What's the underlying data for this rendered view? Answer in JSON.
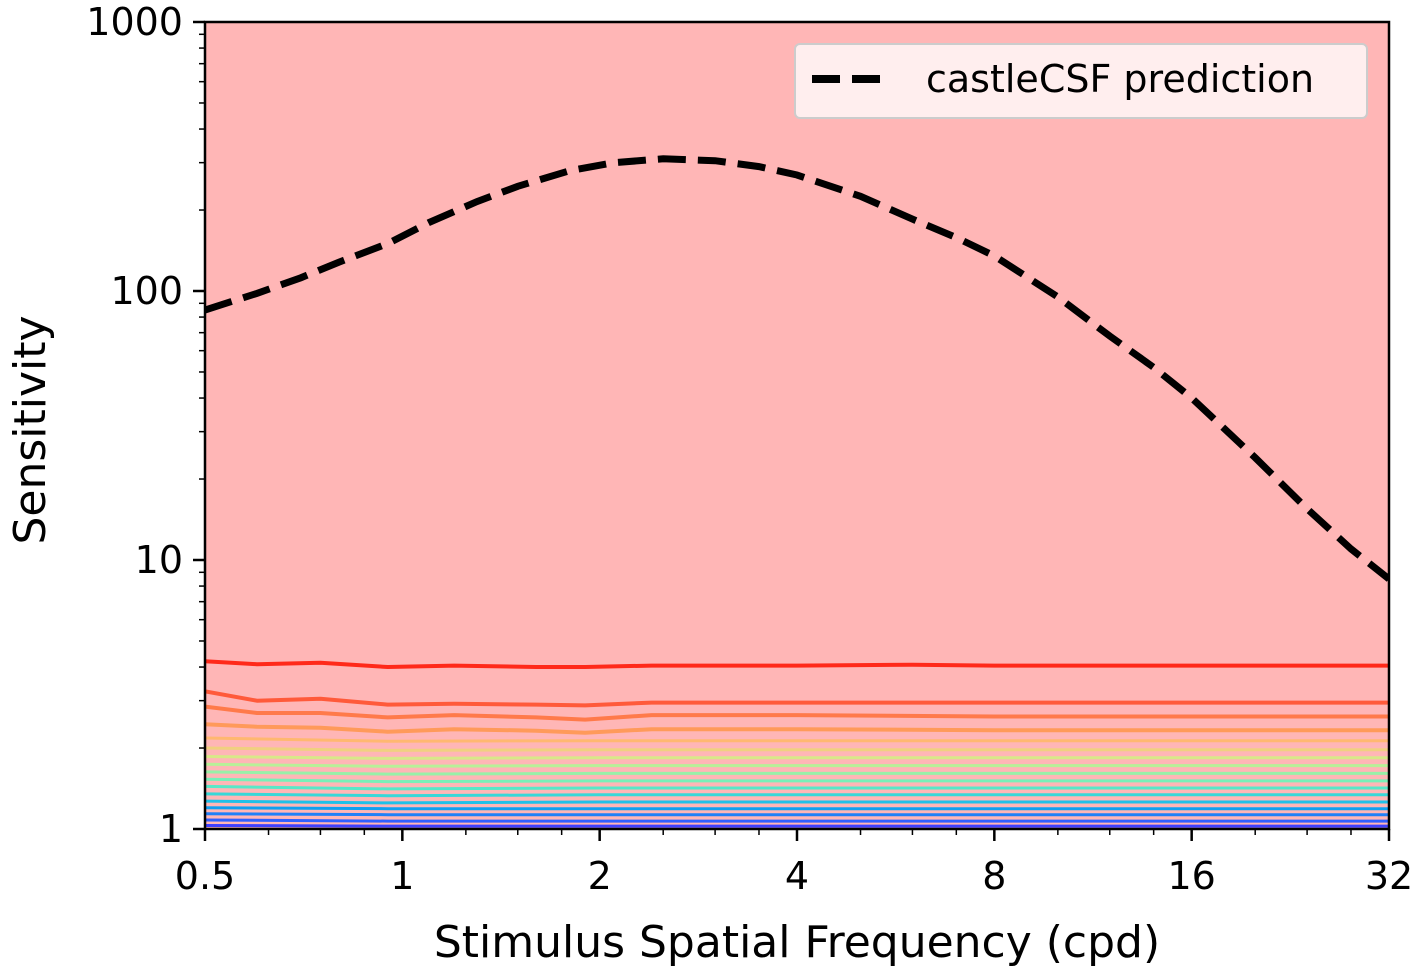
{
  "chart_data": {
    "type": "line",
    "xscale": "log2",
    "yscale": "log10",
    "xlim": [
      0.5,
      32
    ],
    "ylim": [
      1,
      1000
    ],
    "xlabel": "Stimulus Spatial Frequency (cpd)",
    "ylabel": "Sensitivity",
    "xticks": [
      {
        "value": 0.5,
        "label": "0.5"
      },
      {
        "value": 1,
        "label": "1"
      },
      {
        "value": 2,
        "label": "2"
      },
      {
        "value": 4,
        "label": "4"
      },
      {
        "value": 8,
        "label": "8"
      },
      {
        "value": 16,
        "label": "16"
      },
      {
        "value": 32,
        "label": "32"
      }
    ],
    "yticks": [
      {
        "value": 1,
        "label": "1"
      },
      {
        "value": 10,
        "label": "10"
      },
      {
        "value": 100,
        "label": "100"
      },
      {
        "value": 1000,
        "label": "1000"
      }
    ],
    "legend": {
      "position": "top-right",
      "entries": [
        "castleCSF prediction"
      ]
    },
    "background_color": "#ffb6b6",
    "series": [
      {
        "name": "castleCSF prediction",
        "style": "dashed",
        "color": "#000000",
        "x": [
          0.5,
          0.6,
          0.7,
          0.8,
          0.95,
          1.1,
          1.3,
          1.5,
          1.8,
          2.1,
          2.5,
          3.0,
          3.5,
          4.0,
          5.0,
          6.0,
          7.0,
          8.0,
          10.0,
          12.0,
          14.0,
          16.0,
          20.0,
          24.0,
          28.0,
          32.0
        ],
        "y": [
          85,
          98,
          112,
          128,
          150,
          180,
          215,
          245,
          280,
          300,
          310,
          305,
          290,
          270,
          225,
          185,
          158,
          135,
          95,
          68,
          52,
          40,
          24,
          15.5,
          11,
          8.5
        ]
      }
    ],
    "contours": [
      {
        "color": "#ff2a1a",
        "x": [
          0.5,
          0.6,
          0.75,
          0.95,
          1.2,
          1.6,
          1.9,
          2.4,
          4.0,
          6.0,
          8.0,
          16.0,
          32.0
        ],
        "y": [
          4.2,
          4.1,
          4.15,
          4.0,
          4.05,
          4.0,
          4.0,
          4.05,
          4.05,
          4.08,
          4.05,
          4.05,
          4.05
        ]
      },
      {
        "color": "#ff5a3a",
        "x": [
          0.5,
          0.6,
          0.75,
          0.95,
          1.2,
          1.6,
          1.9,
          2.4,
          4.0,
          8.0,
          16.0,
          32.0
        ],
        "y": [
          3.25,
          3.0,
          3.05,
          2.9,
          2.92,
          2.9,
          2.88,
          2.95,
          2.95,
          2.95,
          2.95,
          2.95
        ]
      },
      {
        "color": "#ff7a4a",
        "x": [
          0.5,
          0.6,
          0.75,
          0.95,
          1.2,
          1.6,
          1.9,
          2.4,
          4.0,
          8.0,
          16.0,
          32.0
        ],
        "y": [
          2.85,
          2.7,
          2.7,
          2.6,
          2.65,
          2.6,
          2.55,
          2.65,
          2.65,
          2.62,
          2.62,
          2.62
        ]
      },
      {
        "color": "#ff9a5a",
        "x": [
          0.5,
          0.6,
          0.75,
          0.95,
          1.2,
          1.6,
          1.9,
          2.4,
          4.0,
          8.0,
          16.0,
          32.0
        ],
        "y": [
          2.45,
          2.4,
          2.38,
          2.3,
          2.35,
          2.32,
          2.28,
          2.35,
          2.35,
          2.33,
          2.33,
          2.33
        ]
      },
      {
        "color": "#ffb870",
        "x": [
          0.5,
          0.95,
          2.0,
          8.0,
          32.0
        ],
        "y": [
          2.18,
          2.12,
          2.13,
          2.13,
          2.13
        ]
      },
      {
        "color": "#f0d080",
        "x": [
          0.5,
          0.95,
          2.0,
          8.0,
          32.0
        ],
        "y": [
          2.0,
          1.96,
          1.97,
          1.97,
          1.97
        ]
      },
      {
        "color": "#d8e888",
        "x": [
          0.5,
          0.95,
          2.0,
          8.0,
          32.0
        ],
        "y": [
          1.86,
          1.83,
          1.84,
          1.84,
          1.84
        ]
      },
      {
        "color": "#b8f098",
        "x": [
          0.5,
          0.95,
          2.0,
          8.0,
          32.0
        ],
        "y": [
          1.74,
          1.71,
          1.72,
          1.72,
          1.72
        ]
      },
      {
        "color": "#98f0a8",
        "x": [
          0.5,
          0.95,
          2.0,
          8.0,
          32.0
        ],
        "y": [
          1.63,
          1.6,
          1.61,
          1.61,
          1.61
        ]
      },
      {
        "color": "#78f0b8",
        "x": [
          0.5,
          0.95,
          2.0,
          8.0,
          32.0
        ],
        "y": [
          1.53,
          1.5,
          1.51,
          1.51,
          1.51
        ]
      },
      {
        "color": "#58e8c8",
        "x": [
          0.5,
          0.95,
          2.0,
          8.0,
          32.0
        ],
        "y": [
          1.44,
          1.41,
          1.42,
          1.42,
          1.42
        ]
      },
      {
        "color": "#38d8d8",
        "x": [
          0.5,
          0.95,
          2.0,
          8.0,
          32.0
        ],
        "y": [
          1.35,
          1.33,
          1.34,
          1.34,
          1.34
        ]
      },
      {
        "color": "#20c0e8",
        "x": [
          0.5,
          0.95,
          2.0,
          8.0,
          32.0
        ],
        "y": [
          1.27,
          1.25,
          1.26,
          1.26,
          1.26
        ]
      },
      {
        "color": "#10a0f0",
        "x": [
          0.5,
          0.95,
          2.0,
          8.0,
          32.0
        ],
        "y": [
          1.2,
          1.19,
          1.19,
          1.19,
          1.19
        ]
      },
      {
        "color": "#2080f8",
        "x": [
          0.5,
          0.95,
          2.0,
          8.0,
          32.0
        ],
        "y": [
          1.14,
          1.13,
          1.13,
          1.13,
          1.13
        ]
      },
      {
        "color": "#3060ff",
        "x": [
          0.5,
          0.95,
          2.0,
          8.0,
          32.0
        ],
        "y": [
          1.08,
          1.07,
          1.07,
          1.07,
          1.07
        ]
      },
      {
        "color": "#4040ff",
        "x": [
          0.5,
          0.95,
          2.0,
          8.0,
          32.0
        ],
        "y": [
          1.03,
          1.025,
          1.025,
          1.025,
          1.025
        ]
      }
    ]
  }
}
